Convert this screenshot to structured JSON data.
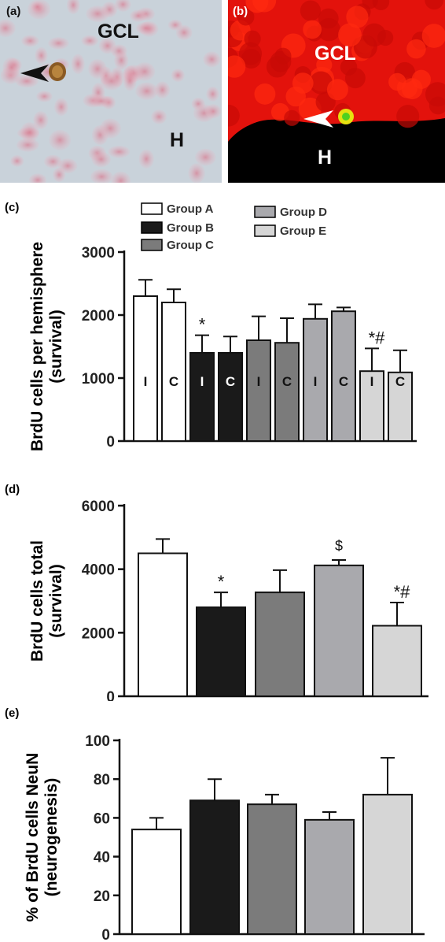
{
  "images": {
    "a": {
      "label": "(a)",
      "region_top": "GCL",
      "region_bottom": "H"
    },
    "b": {
      "label": "(b)",
      "region_top": "GCL",
      "region_bottom": "H"
    }
  },
  "colors": {
    "group_a": "#ffffff",
    "group_b": "#1a1a1a",
    "group_c": "#7b7b7b",
    "group_d": "#a9a9ad",
    "group_e": "#d6d6d6",
    "stain_red": "#ff1a00",
    "tissue_pink": "#d88a98"
  },
  "legend": [
    "Group A",
    "Group B",
    "Group C",
    "Group D",
    "Group E"
  ],
  "chart_data": [
    {
      "panel": "(c)",
      "type": "bar",
      "ylabel": "BrdU cells per hemisphere",
      "ylabel2": "(survival)",
      "ylim": [
        0,
        3000
      ],
      "yticks": [
        "0",
        "1000",
        "2000",
        "3000"
      ],
      "categories": [
        "I",
        "C",
        "I",
        "C",
        "I",
        "C",
        "I",
        "C",
        "I",
        "C"
      ],
      "groups": [
        "Group A",
        "Group A",
        "Group B",
        "Group B",
        "Group C",
        "Group C",
        "Group D",
        "Group D",
        "Group E",
        "Group E"
      ],
      "values": [
        2300,
        2200,
        1400,
        1400,
        1600,
        1560,
        1940,
        2060,
        1110,
        1090
      ],
      "errors": [
        260,
        210,
        280,
        260,
        380,
        390,
        230,
        60,
        360,
        350
      ],
      "annotations": [
        {
          "index": 2,
          "text": "*"
        },
        {
          "index": 8,
          "text": "*#"
        }
      ]
    },
    {
      "panel": "(d)",
      "type": "bar",
      "ylabel": "BrdU cells total",
      "ylabel2": "(survival)",
      "ylim": [
        0,
        6000
      ],
      "yticks": [
        "0",
        "2000",
        "4000",
        "6000"
      ],
      "groups": [
        "Group A",
        "Group B",
        "Group C",
        "Group D",
        "Group E"
      ],
      "values": [
        4500,
        2800,
        3270,
        4120,
        2220
      ],
      "errors": [
        450,
        470,
        700,
        170,
        730
      ],
      "annotations": [
        {
          "index": 1,
          "text": "*"
        },
        {
          "index": 3,
          "text": "$"
        },
        {
          "index": 4,
          "text": "*#"
        }
      ]
    },
    {
      "panel": "(e)",
      "type": "bar",
      "ylabel": "% of BrdU cells NeuN",
      "ylabel2": "(neurogenesis)",
      "ylim": [
        0,
        100
      ],
      "yticks": [
        "0",
        "20",
        "40",
        "60",
        "80",
        "100"
      ],
      "groups": [
        "Group A",
        "Group B",
        "Group C",
        "Group D",
        "Group E"
      ],
      "values": [
        54,
        69,
        67,
        59,
        72
      ],
      "errors": [
        6,
        11,
        5,
        4,
        19
      ],
      "annotations": []
    }
  ]
}
